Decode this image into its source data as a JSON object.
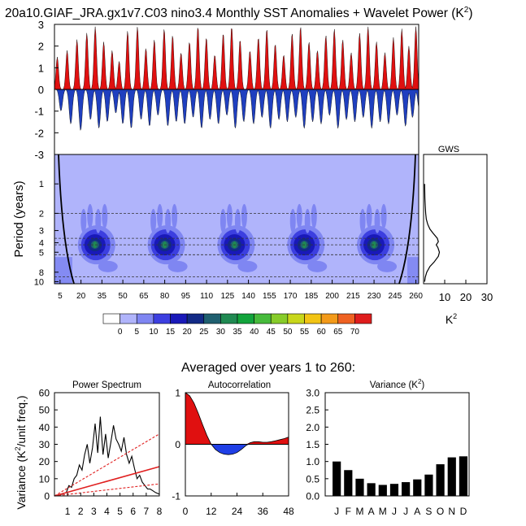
{
  "title": {
    "main": "20a10.GIAF_JRA.gx1v7.C03 nino3.4 Monthly SST Anomalies + Wavelet Power (K",
    "sup": "2",
    "close": ")"
  },
  "subtitle": "Averaged over years 1 to 260:",
  "chart_data": [
    {
      "type": "area",
      "name": "sst_anomaly",
      "ylim": [
        -3,
        3
      ],
      "yticks": [
        "3",
        "2",
        "1",
        "0",
        "-1",
        "-2",
        "-3"
      ],
      "ytick_values": [
        3,
        2,
        1,
        0,
        -1,
        -2,
        -3
      ],
      "xlim": [
        1,
        260
      ],
      "colors": {
        "positive": "#e01010",
        "negative": "#1f3fbf"
      },
      "events": [
        {
          "x": 3,
          "peak": 1.5,
          "trough": -1.0
        },
        {
          "x": 10,
          "peak": 1.8,
          "trough": -1.6
        },
        {
          "x": 17,
          "peak": 2.3,
          "trough": -1.9
        },
        {
          "x": 24,
          "peak": 2.6,
          "trough": -1.4
        },
        {
          "x": 30,
          "peak": 2.9,
          "trough": -1.8
        },
        {
          "x": 36,
          "peak": 2.2,
          "trough": -1.5
        },
        {
          "x": 42,
          "peak": 1.8,
          "trough": -1.1
        },
        {
          "x": 47,
          "peak": 1.3,
          "trough": -1.6
        },
        {
          "x": 53,
          "peak": 2.7,
          "trough": -1.8
        },
        {
          "x": 60,
          "peak": 2.9,
          "trough": -1.4
        },
        {
          "x": 66,
          "peak": 1.9,
          "trough": -1.7
        },
        {
          "x": 72,
          "peak": 2.3,
          "trough": -1.2
        },
        {
          "x": 79,
          "peak": 2.8,
          "trough": -1.7
        },
        {
          "x": 85,
          "peak": 2.5,
          "trough": -1.5
        },
        {
          "x": 91,
          "peak": 1.7,
          "trough": -1.6
        },
        {
          "x": 97,
          "peak": 2.2,
          "trough": -1.3
        },
        {
          "x": 103,
          "peak": 2.9,
          "trough": -1.8
        },
        {
          "x": 109,
          "peak": 2.4,
          "trough": -1.4
        },
        {
          "x": 115,
          "peak": 1.6,
          "trough": -1.6
        },
        {
          "x": 121,
          "peak": 2.6,
          "trough": -1.2
        },
        {
          "x": 127,
          "peak": 2.9,
          "trough": -1.8
        },
        {
          "x": 133,
          "peak": 2.3,
          "trough": -1.5
        },
        {
          "x": 140,
          "peak": 1.8,
          "trough": -1.6
        },
        {
          "x": 146,
          "peak": 2.4,
          "trough": -1.3
        },
        {
          "x": 152,
          "peak": 2.8,
          "trough": -1.8
        },
        {
          "x": 158,
          "peak": 2.1,
          "trough": -1.4
        },
        {
          "x": 164,
          "peak": 1.6,
          "trough": -1.5
        },
        {
          "x": 170,
          "peak": 2.6,
          "trough": -1.3
        },
        {
          "x": 176,
          "peak": 2.9,
          "trough": -1.8
        },
        {
          "x": 182,
          "peak": 2.2,
          "trough": -1.5
        },
        {
          "x": 188,
          "peak": 1.8,
          "trough": -1.6
        },
        {
          "x": 194,
          "peak": 2.5,
          "trough": -1.2
        },
        {
          "x": 200,
          "peak": 2.8,
          "trough": -1.8
        },
        {
          "x": 206,
          "peak": 2.3,
          "trough": -1.4
        },
        {
          "x": 212,
          "peak": 1.7,
          "trough": -1.5
        },
        {
          "x": 218,
          "peak": 2.6,
          "trough": -1.3
        },
        {
          "x": 224,
          "peak": 2.9,
          "trough": -1.8
        },
        {
          "x": 230,
          "peak": 2.2,
          "trough": -1.5
        },
        {
          "x": 236,
          "peak": 1.7,
          "trough": -1.6
        },
        {
          "x": 242,
          "peak": 2.4,
          "trough": -1.2
        },
        {
          "x": 248,
          "peak": 2.8,
          "trough": -1.7
        },
        {
          "x": 253,
          "peak": 2.0,
          "trough": -1.3
        },
        {
          "x": 258,
          "peak": 2.9,
          "trough": -1.0
        }
      ]
    },
    {
      "type": "heatmap",
      "name": "wavelet_power",
      "ylabel": "Period (years)",
      "yticks": [
        "1",
        "2",
        "3",
        "4",
        "5",
        "8",
        "10"
      ],
      "ytick_values": [
        1,
        2,
        3,
        4,
        5,
        8,
        10
      ],
      "ylim": [
        0.5,
        10.5
      ],
      "xlim": [
        1,
        262
      ],
      "xticks": [
        "5",
        "20",
        "35",
        "50",
        "65",
        "80",
        "95",
        "110",
        "125",
        "140",
        "155",
        "170",
        "185",
        "200",
        "215",
        "230",
        "245",
        "260"
      ],
      "xtick_values": [
        5,
        20,
        35,
        50,
        65,
        80,
        95,
        110,
        125,
        140,
        155,
        170,
        185,
        200,
        215,
        230,
        245,
        260
      ],
      "dashed_periods": [
        2,
        3.6,
        4.2,
        5.3,
        8.9
      ],
      "cone_of_influence": {
        "left_edge_year": 15,
        "right_edge_year": 248
      },
      "blobs": [
        {
          "x": 30,
          "period": 4.2,
          "level": 35
        },
        {
          "x": 80,
          "period": 4.2,
          "level": 35
        },
        {
          "x": 130,
          "period": 4.2,
          "level": 30
        },
        {
          "x": 180,
          "period": 4.2,
          "level": 30
        },
        {
          "x": 230,
          "period": 4.2,
          "level": 30
        }
      ],
      "colorbar": {
        "labels": [
          "0",
          "5",
          "10",
          "15",
          "20",
          "25",
          "30",
          "35",
          "40",
          "45",
          "50",
          "55",
          "60",
          "65",
          "70"
        ],
        "colors": [
          "#ffffff",
          "#b0b4fb",
          "#7f86f2",
          "#3c3fe0",
          "#1919b9",
          "#122a86",
          "#1f5f6f",
          "#208a52",
          "#12a43c",
          "#47bb3c",
          "#87cc2a",
          "#c8d71b",
          "#f2c414",
          "#f39a19",
          "#ef6222",
          "#df1d1d"
        ]
      }
    },
    {
      "type": "line",
      "name": "global_wavelet_spectrum",
      "title": "GWS",
      "xticks": [
        "10",
        "20",
        "30"
      ],
      "xtick_values": [
        10,
        20,
        30
      ],
      "xlim": [
        0,
        30
      ],
      "xlabel": "K",
      "xlabel_sup": "2",
      "x": [
        0.5,
        0.6,
        0.8,
        1.0,
        1.3,
        2.0,
        3.0,
        4.5,
        6.5,
        7.0,
        6.0,
        6.8,
        7.5,
        7.0,
        5.0,
        3.0,
        1.5,
        0.8,
        0.5
      ],
      "y_period": [
        1.0,
        1.4,
        1.7,
        2.0,
        2.3,
        2.6,
        2.9,
        3.2,
        3.6,
        3.9,
        4.2,
        4.5,
        5.0,
        5.5,
        6.3,
        7.0,
        8.0,
        9.0,
        10.0
      ]
    },
    {
      "type": "line",
      "name": "power_spectrum",
      "title": "Power Spectrum",
      "ylabel": "Variance (K",
      "ylabel_sup": "2",
      "ylabel_tail": "/unit freq.)",
      "xlim": [
        0,
        8
      ],
      "ylim": [
        0,
        60
      ],
      "xticks": [
        "1",
        "2",
        "3",
        "4",
        "5",
        "6",
        "7",
        "8"
      ],
      "xtick_values": [
        1,
        2,
        3,
        4,
        5,
        6,
        7,
        8
      ],
      "yticks": [
        "0",
        "10",
        "20",
        "30",
        "40",
        "50",
        "60"
      ],
      "ytick_values": [
        0,
        10,
        20,
        30,
        40,
        50,
        60
      ],
      "series": [
        {
          "name": "spectrum",
          "color": "#000000",
          "x": [
            0.0,
            0.3,
            0.6,
            0.9,
            1.1,
            1.3,
            1.5,
            1.7,
            1.9,
            2.1,
            2.3,
            2.5,
            2.7,
            2.9,
            3.1,
            3.3,
            3.5,
            3.7,
            3.9,
            4.1,
            4.3,
            4.5,
            4.7,
            4.9,
            5.1,
            5.3,
            5.5,
            5.7,
            5.9,
            6.1,
            6.3,
            6.5,
            6.7,
            6.9,
            7.1,
            7.3,
            7.5,
            7.7,
            8.0
          ],
          "values": [
            0,
            0.5,
            1,
            2,
            6,
            5,
            10,
            12,
            18,
            15,
            24,
            30,
            19,
            28,
            42,
            25,
            46,
            24,
            36,
            22,
            31,
            41,
            33,
            30,
            26,
            34,
            24,
            19,
            23,
            16,
            10,
            12,
            8,
            6,
            4,
            4,
            3,
            2,
            1
          ]
        },
        {
          "name": "red-noise fit",
          "color": "#e02020",
          "x": [
            0,
            8
          ],
          "values": [
            0,
            17
          ]
        },
        {
          "name": "upper confidence",
          "color": "#e02020",
          "dashed": true,
          "x": [
            0,
            8
          ],
          "values": [
            0,
            36
          ]
        },
        {
          "name": "lower confidence",
          "color": "#e02020",
          "dashed": true,
          "x": [
            0,
            8
          ],
          "values": [
            0,
            7
          ]
        }
      ]
    },
    {
      "type": "area",
      "name": "autocorrelation",
      "title": "Autocorrelation",
      "xlim": [
        0,
        48
      ],
      "ylim": [
        -1,
        1
      ],
      "xticks": [
        "0",
        "12",
        "24",
        "36",
        "48"
      ],
      "xtick_values": [
        0,
        12,
        24,
        36,
        48
      ],
      "yticks": [
        "1",
        "0",
        "-1"
      ],
      "ytick_values": [
        1,
        0,
        -1
      ],
      "x": [
        0,
        2,
        4,
        6,
        8,
        10,
        12,
        14,
        16,
        18,
        20,
        22,
        24,
        26,
        28,
        30,
        32,
        34,
        36,
        38,
        40,
        42,
        44,
        46,
        48
      ],
      "values": [
        1.0,
        0.94,
        0.8,
        0.6,
        0.38,
        0.17,
        0.0,
        -0.1,
        -0.16,
        -0.19,
        -0.2,
        -0.19,
        -0.16,
        -0.1,
        -0.03,
        0.03,
        0.05,
        0.05,
        0.04,
        0.04,
        0.05,
        0.07,
        0.09,
        0.11,
        0.14
      ],
      "colors": {
        "positive": "#e01010",
        "negative": "#1f3fe6"
      }
    },
    {
      "type": "bar",
      "name": "monthly_variance",
      "title": "Variance (K",
      "title_sup": "2",
      "title_close": ")",
      "categories": [
        "J",
        "F",
        "M",
        "A",
        "M",
        "J",
        "J",
        "A",
        "S",
        "O",
        "N",
        "D"
      ],
      "values": [
        1.0,
        0.75,
        0.5,
        0.37,
        0.32,
        0.35,
        0.4,
        0.48,
        0.62,
        0.92,
        1.12,
        1.15
      ],
      "ylim": [
        0,
        3
      ],
      "yticks": [
        "0.0",
        "0.5",
        "1.0",
        "1.5",
        "2.0",
        "2.5",
        "3.0"
      ],
      "ytick_values": [
        0,
        0.5,
        1.0,
        1.5,
        2.0,
        2.5,
        3.0
      ],
      "color": "#000000"
    }
  ]
}
